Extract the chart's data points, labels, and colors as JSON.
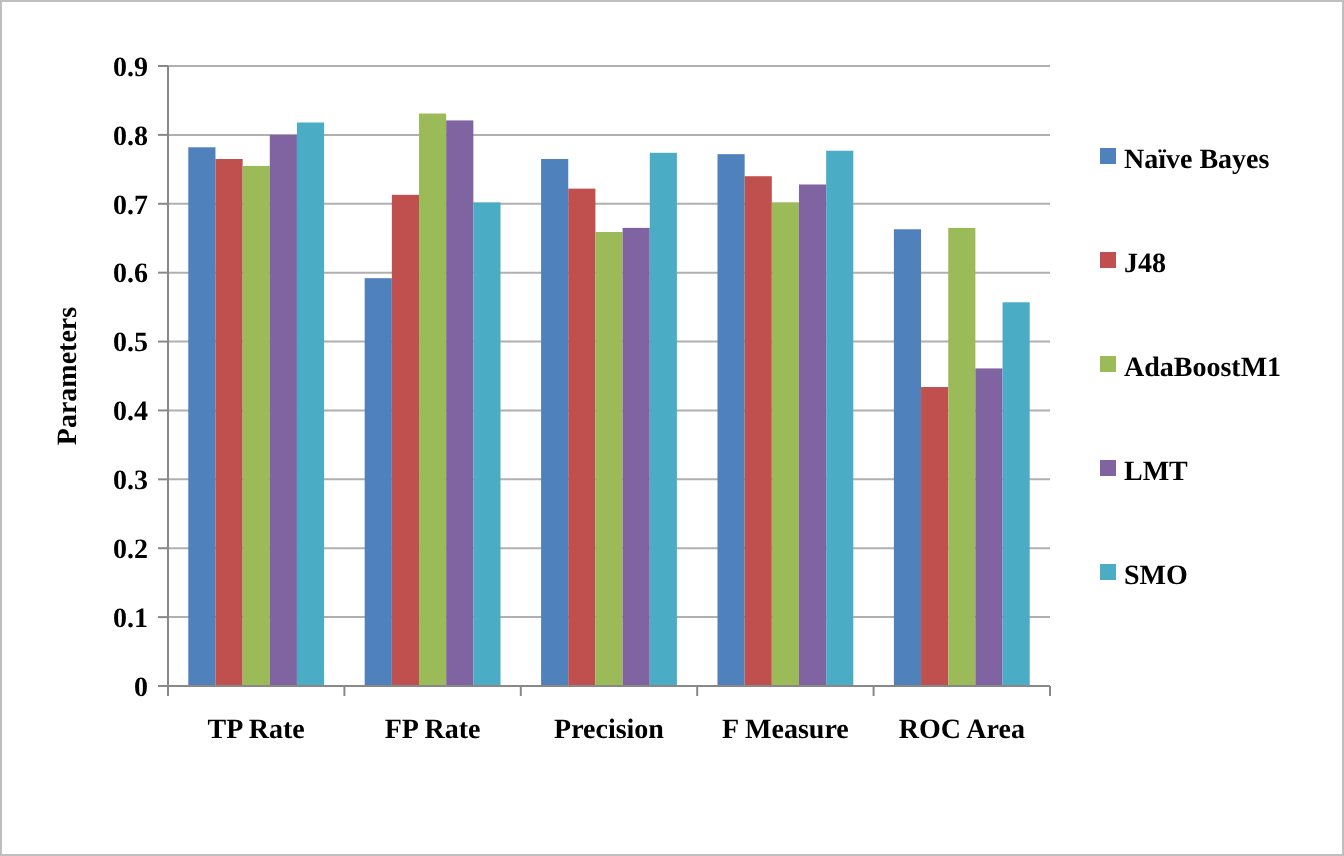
{
  "chart_data": {
    "type": "bar",
    "ylabel": "Parameters",
    "categories": [
      "TP Rate",
      "FP Rate",
      "Precision",
      "F Measure",
      "ROC Area"
    ],
    "series": [
      {
        "name": "Naïve Bayes",
        "color": "#4f81bd",
        "values": [
          0.782,
          0.592,
          0.765,
          0.772,
          0.663
        ]
      },
      {
        "name": "J48",
        "color": "#c0504d",
        "values": [
          0.765,
          0.713,
          0.722,
          0.74,
          0.434
        ]
      },
      {
        "name": "AdaBoostM1",
        "color": "#9bbb59",
        "values": [
          0.755,
          0.831,
          0.659,
          0.702,
          0.665
        ]
      },
      {
        "name": "LMT",
        "color": "#8064a2",
        "values": [
          0.8,
          0.821,
          0.665,
          0.728,
          0.461
        ]
      },
      {
        "name": "SMO",
        "color": "#4bacc6",
        "values": [
          0.818,
          0.702,
          0.774,
          0.777,
          0.557
        ]
      }
    ],
    "ylim": [
      0,
      0.9
    ],
    "yticks": [
      0,
      0.1,
      0.2,
      0.3,
      0.4,
      0.5,
      0.6,
      0.7,
      0.8,
      0.9
    ],
    "grid": "y",
    "legend": "right"
  }
}
